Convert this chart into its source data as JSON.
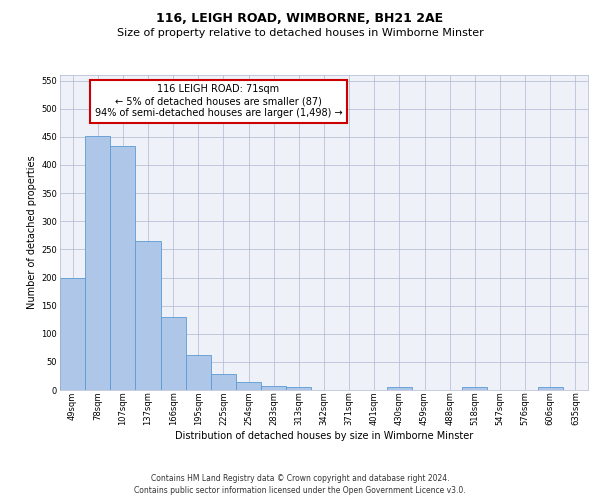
{
  "title": "116, LEIGH ROAD, WIMBORNE, BH21 2AE",
  "subtitle": "Size of property relative to detached houses in Wimborne Minster",
  "xlabel": "Distribution of detached houses by size in Wimborne Minster",
  "ylabel": "Number of detached properties",
  "categories": [
    "49sqm",
    "78sqm",
    "107sqm",
    "137sqm",
    "166sqm",
    "195sqm",
    "225sqm",
    "254sqm",
    "283sqm",
    "313sqm",
    "342sqm",
    "371sqm",
    "401sqm",
    "430sqm",
    "459sqm",
    "488sqm",
    "518sqm",
    "547sqm",
    "576sqm",
    "606sqm",
    "635sqm"
  ],
  "values": [
    200,
    452,
    433,
    265,
    130,
    62,
    28,
    14,
    8,
    6,
    0,
    0,
    0,
    6,
    0,
    0,
    5,
    0,
    0,
    5,
    0
  ],
  "bar_color": "#aec6e8",
  "bar_edge_color": "#5b9bd5",
  "annotation_title": "116 LEIGH ROAD: 71sqm",
  "annotation_line1": "← 5% of detached houses are smaller (87)",
  "annotation_line2": "94% of semi-detached houses are larger (1,498) →",
  "annotation_box_color": "#ffffff",
  "annotation_box_edge_color": "#cc0000",
  "ylim": [
    0,
    560
  ],
  "yticks": [
    0,
    50,
    100,
    150,
    200,
    250,
    300,
    350,
    400,
    450,
    500,
    550
  ],
  "bg_color": "#eef2f8",
  "footer_line1": "Contains HM Land Registry data © Crown copyright and database right 2024.",
  "footer_line2": "Contains public sector information licensed under the Open Government Licence v3.0.",
  "title_fontsize": 9,
  "subtitle_fontsize": 8,
  "axis_label_fontsize": 7,
  "tick_fontsize": 6,
  "annotation_fontsize": 7,
  "footer_fontsize": 5.5
}
